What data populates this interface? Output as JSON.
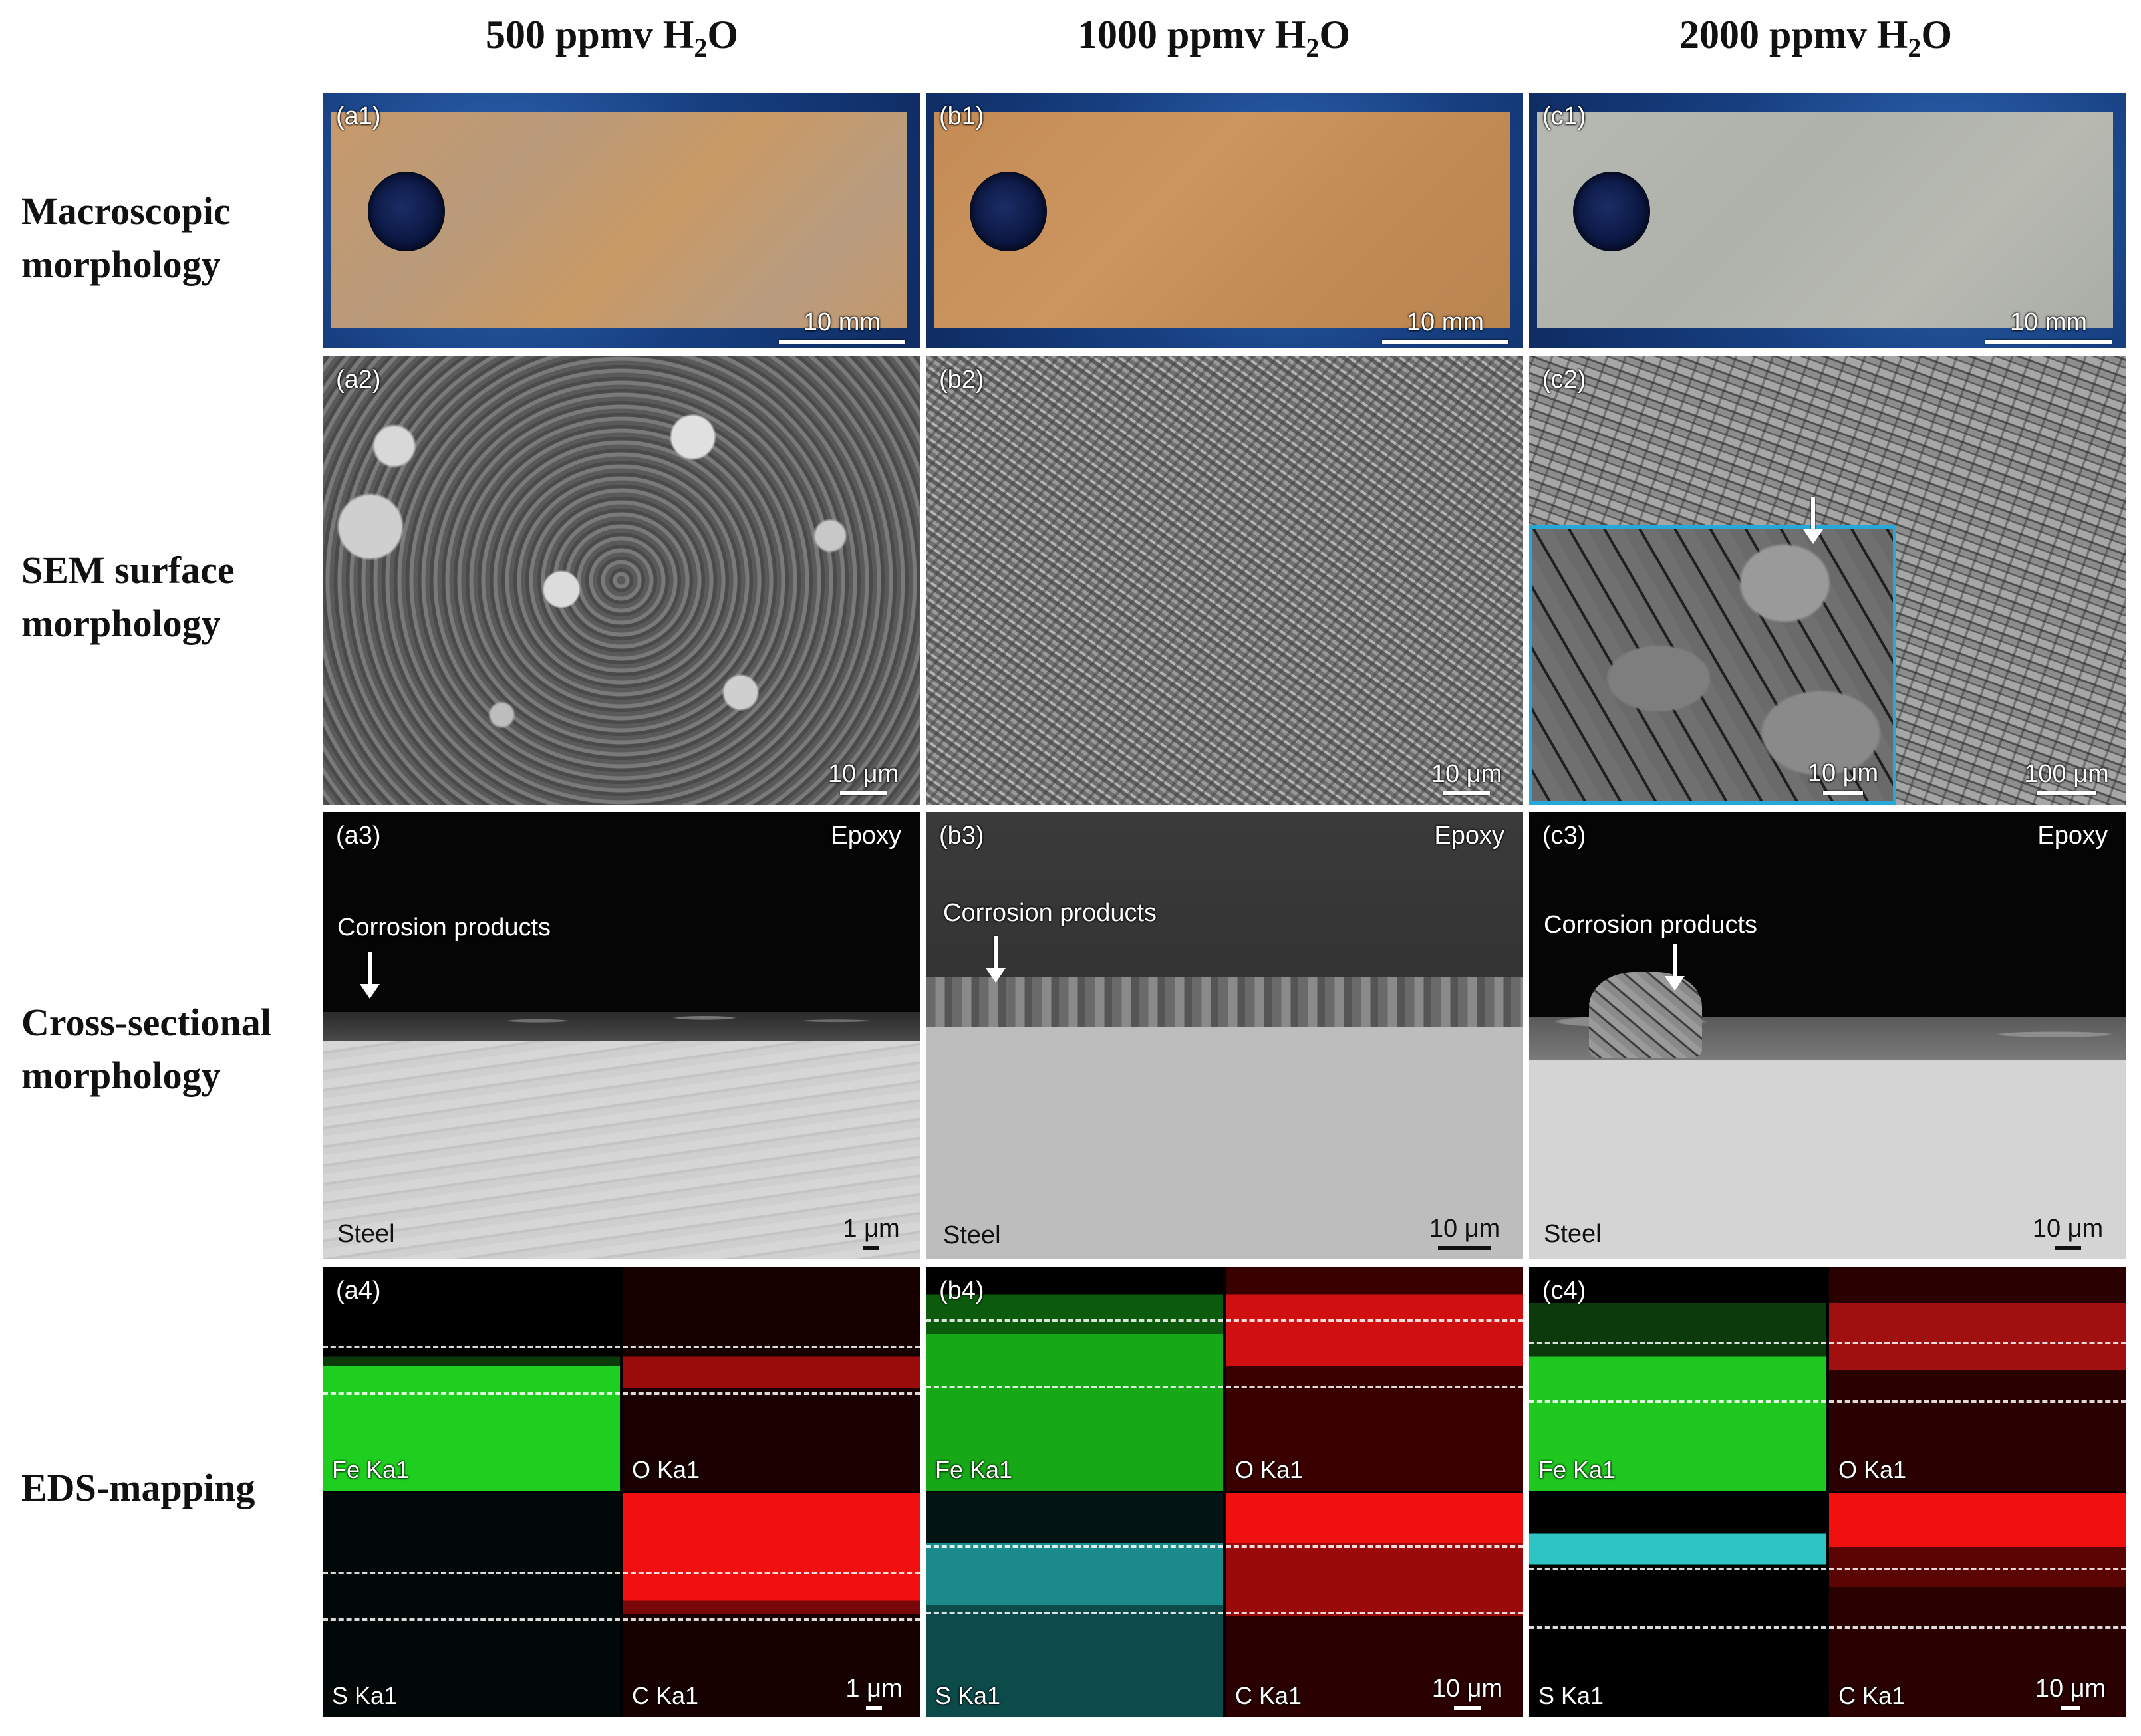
{
  "columns": [
    {
      "prefix": "500 ppmv H",
      "sub": "2",
      "suffix": "O"
    },
    {
      "prefix": "1000 ppmv H",
      "sub": "2",
      "suffix": "O"
    },
    {
      "prefix": "2000 ppmv H",
      "sub": "2",
      "suffix": "O"
    }
  ],
  "rows": [
    {
      "line1": "Macroscopic",
      "line2": "morphology"
    },
    {
      "line1": "SEM surface",
      "line2": "morphology"
    },
    {
      "line1": "Cross-sectional",
      "line2": "morphology"
    },
    {
      "line1": "EDS-mapping",
      "line2": ""
    }
  ],
  "macro": {
    "labels": [
      "(a1)",
      "(b1)",
      "(c1)"
    ],
    "scale": "10 mm",
    "plate_colors": [
      "#c49a6a",
      "#c68d55",
      "#b3b6ae"
    ],
    "background": "#1b4a8c"
  },
  "sem": {
    "labels": [
      "(a2)",
      "(b2)",
      "(c2)"
    ],
    "scales": [
      "10 μm",
      "10 μm",
      "100 μm"
    ],
    "inset_scale": "10 μm",
    "inset_border": "#26a9d6"
  },
  "cross": {
    "labels": [
      "(a3)",
      "(b3)",
      "(c3)"
    ],
    "epoxy": "Epoxy",
    "steel": "Steel",
    "corrosion": "Corrosion products",
    "scales": [
      "1 μm",
      "10 μm",
      "10 μm"
    ]
  },
  "eds": {
    "labels": [
      "(a4)",
      "(b4)",
      "(c4)"
    ],
    "elements": [
      "Fe Ka1",
      "O Ka1",
      "S Ka1",
      "C Ka1"
    ],
    "scales": [
      "1 μm",
      "10 μm",
      "10 μm"
    ],
    "colors": {
      "fe": "#1fcf1f",
      "o": "#e01010",
      "s": "#2ec4c4",
      "c": "#f01010"
    }
  }
}
